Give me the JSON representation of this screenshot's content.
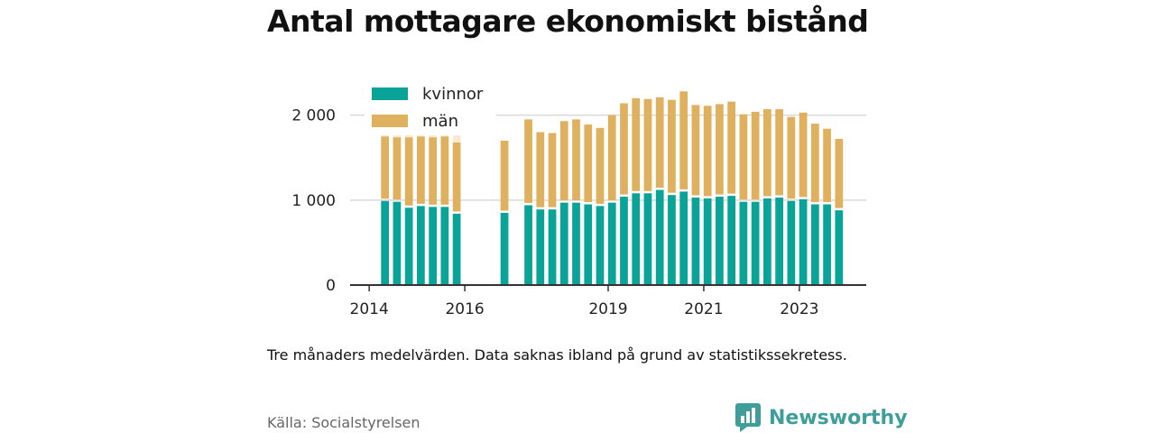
{
  "title": "Antal mottagare ekonomiskt bistånd",
  "note": "Tre månaders medelvärden. Data saknas ibland på grund av statistikssekretess.",
  "source": "Källa: Socialstyrelsen",
  "brand": {
    "name": "Newsworthy",
    "icon": "newsworthy-logo-icon",
    "color": "#3e9e9a"
  },
  "colors": {
    "kvinnor": "#0aa397",
    "man": "#dfb15f",
    "man_faded": "#f6ead3",
    "grid": "#d9d9d9",
    "axis": "#333333"
  },
  "chart_data": {
    "type": "bar",
    "stacked": true,
    "grid": true,
    "legend_position": "top-left",
    "xlim": [
      2013.6,
      2024.4
    ],
    "ylim": [
      0,
      2400
    ],
    "x_ticks": [
      {
        "value": 2014,
        "label": "2014"
      },
      {
        "value": 2016,
        "label": "2016"
      },
      {
        "value": 2019,
        "label": "2019"
      },
      {
        "value": 2021,
        "label": "2021"
      },
      {
        "value": 2023,
        "label": "2023"
      }
    ],
    "y_ticks": [
      {
        "value": 0,
        "label": "0"
      },
      {
        "value": 1000,
        "label": "1 000"
      },
      {
        "value": 2000,
        "label": "2 000"
      }
    ],
    "series": [
      {
        "name": "kvinnor",
        "color": "#0aa397"
      },
      {
        "name": "män",
        "color": "#dfb15f"
      }
    ],
    "bars": [
      {
        "x": 2014.33,
        "kvinnor": 990,
        "man": 760
      },
      {
        "x": 2014.58,
        "kvinnor": 980,
        "man": 760
      },
      {
        "x": 2014.83,
        "kvinnor": 910,
        "man": 830
      },
      {
        "x": 2015.08,
        "kvinnor": 930,
        "man": 820
      },
      {
        "x": 2015.33,
        "kvinnor": 920,
        "man": 820
      },
      {
        "x": 2015.58,
        "kvinnor": 920,
        "man": 830
      },
      {
        "x": 2015.83,
        "kvinnor": 840,
        "man": 840
      },
      {
        "x": 2016.83,
        "kvinnor": 850,
        "man": 850
      },
      {
        "x": 2017.33,
        "kvinnor": 940,
        "man": 1010
      },
      {
        "x": 2017.58,
        "kvinnor": 890,
        "man": 910
      },
      {
        "x": 2017.83,
        "kvinnor": 890,
        "man": 900
      },
      {
        "x": 2018.08,
        "kvinnor": 970,
        "man": 960
      },
      {
        "x": 2018.33,
        "kvinnor": 970,
        "man": 980
      },
      {
        "x": 2018.58,
        "kvinnor": 950,
        "man": 940
      },
      {
        "x": 2018.83,
        "kvinnor": 930,
        "man": 920
      },
      {
        "x": 2019.08,
        "kvinnor": 970,
        "man": 1030
      },
      {
        "x": 2019.33,
        "kvinnor": 1040,
        "man": 1100
      },
      {
        "x": 2019.58,
        "kvinnor": 1080,
        "man": 1120
      },
      {
        "x": 2019.83,
        "kvinnor": 1080,
        "man": 1110
      },
      {
        "x": 2020.08,
        "kvinnor": 1120,
        "man": 1090
      },
      {
        "x": 2020.33,
        "kvinnor": 1060,
        "man": 1120
      },
      {
        "x": 2020.58,
        "kvinnor": 1100,
        "man": 1180
      },
      {
        "x": 2020.83,
        "kvinnor": 1030,
        "man": 1090
      },
      {
        "x": 2021.08,
        "kvinnor": 1020,
        "man": 1090
      },
      {
        "x": 2021.33,
        "kvinnor": 1040,
        "man": 1090
      },
      {
        "x": 2021.58,
        "kvinnor": 1050,
        "man": 1110
      },
      {
        "x": 2021.83,
        "kvinnor": 980,
        "man": 1030
      },
      {
        "x": 2022.08,
        "kvinnor": 980,
        "man": 1060
      },
      {
        "x": 2022.33,
        "kvinnor": 1020,
        "man": 1050
      },
      {
        "x": 2022.58,
        "kvinnor": 1030,
        "man": 1040
      },
      {
        "x": 2022.83,
        "kvinnor": 990,
        "man": 990
      },
      {
        "x": 2023.08,
        "kvinnor": 1010,
        "man": 1020
      },
      {
        "x": 2023.33,
        "kvinnor": 950,
        "man": 950
      },
      {
        "x": 2023.58,
        "kvinnor": 950,
        "man": 890
      },
      {
        "x": 2023.83,
        "kvinnor": 880,
        "man": 840
      }
    ]
  }
}
